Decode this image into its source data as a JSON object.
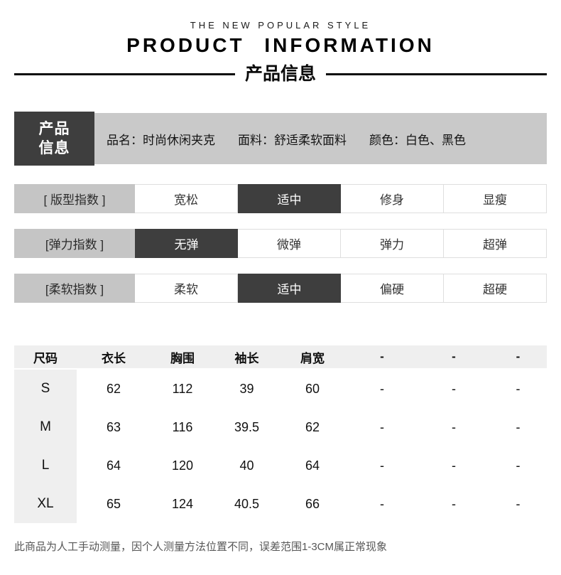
{
  "header": {
    "tagline": "THE NEW POPULAR STYLE",
    "title": "PRODUCT INFORMATION",
    "subtitle": "产品信息"
  },
  "product_info": {
    "label_line1": "产品",
    "label_line2": "信息",
    "separator": "：",
    "fields": [
      {
        "name": "品名",
        "value": "时尚休闲夹克"
      },
      {
        "name": "面料",
        "value": "舒适柔软面料"
      },
      {
        "name": "颜色",
        "value": "白色、黑色"
      }
    ]
  },
  "indicators": [
    {
      "label": "[ 版型指数 ]",
      "options": [
        "宽松",
        "适中",
        "修身",
        "显瘦"
      ],
      "selected_index": 1
    },
    {
      "label": "[弹力指数 ]",
      "options": [
        "无弹",
        "微弹",
        "弹力",
        "超弹"
      ],
      "selected_index": 0
    },
    {
      "label": "[柔软指数 ]",
      "options": [
        "柔软",
        "适中",
        "偏硬",
        "超硬"
      ],
      "selected_index": 1
    }
  ],
  "size_table": {
    "headers": [
      "尺码",
      "衣长",
      "胸围",
      "袖长",
      "肩宽",
      "-",
      "-",
      "-"
    ],
    "rows": [
      {
        "size": "S",
        "values": [
          "62",
          "112",
          "39",
          "60",
          "-",
          "-",
          "-"
        ]
      },
      {
        "size": "M",
        "values": [
          "63",
          "116",
          "39.5",
          "62",
          "-",
          "-",
          "-"
        ]
      },
      {
        "size": "L",
        "values": [
          "64",
          "120",
          "40",
          "64",
          "-",
          "-",
          "-"
        ]
      },
      {
        "size": "XL",
        "values": [
          "65",
          "124",
          "40.5",
          "66",
          "-",
          "-",
          "-"
        ]
      }
    ]
  },
  "footer": {
    "note": "此商品为人工手动测量，因个人测量方法位置不同，误差范围1-3CM属正常现象"
  },
  "colors": {
    "dark": "#3e3e3e",
    "bar_gray": "#c9c9c9",
    "label_gray": "#c5c5c5",
    "strip_gray": "#efefef"
  }
}
